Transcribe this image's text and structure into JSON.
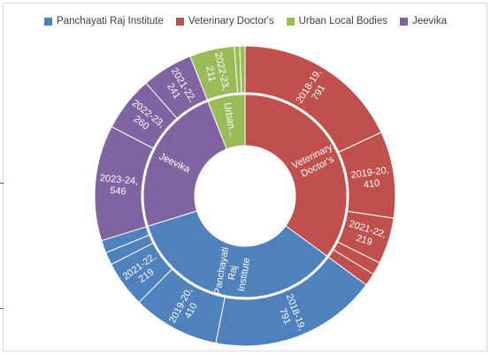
{
  "chart_data": {
    "type": "sunburst",
    "title": "",
    "legend_position": "top",
    "grid": false,
    "categories": [
      {
        "name": "Veterinary Doctor's",
        "label": "Veterinary Doctor's",
        "color": "#c0504d",
        "children": [
          {
            "name": "2018-19",
            "value": 791,
            "label": "2018-19, 791"
          },
          {
            "name": "2019-20",
            "value": 410,
            "label": "2019-20, 410"
          },
          {
            "name": "2021-22",
            "value": 219,
            "label": "2021-22, 219"
          },
          {
            "name": "",
            "value": 60,
            "label": ""
          },
          {
            "name": "",
            "value": 60,
            "label": ""
          }
        ]
      },
      {
        "name": "Panchayati Raj Institute",
        "label": "Panchayati Raj Institute",
        "color": "#4f81bd",
        "children": [
          {
            "name": "2018-19",
            "value": 791,
            "label": "2018-19, 791"
          },
          {
            "name": "2019-20",
            "value": 410,
            "label": "2019-20, 410"
          },
          {
            "name": "2021-22",
            "value": 219,
            "label": "2021-22, 219"
          },
          {
            "name": "",
            "value": 60,
            "label": ""
          },
          {
            "name": "",
            "value": 60,
            "label": ""
          }
        ]
      },
      {
        "name": "Jeevika",
        "label": "Jeevika",
        "color": "#8064a2",
        "children": [
          {
            "name": "2023-24",
            "value": 546,
            "label": "2023-24, 546"
          },
          {
            "name": "2022-23",
            "value": 260,
            "label": "2022-23, 260"
          },
          {
            "name": "2021-22",
            "value": 241,
            "label": "2021-22, 241"
          }
        ]
      },
      {
        "name": "Urban Local Bodies",
        "label": "Urban...",
        "color": "#9bbb59",
        "children": [
          {
            "name": "2022-23",
            "value": 211,
            "label": "2022-23, 211"
          },
          {
            "name": "",
            "value": 25,
            "label": ""
          },
          {
            "name": "",
            "value": 25,
            "label": ""
          }
        ]
      }
    ],
    "legend": [
      {
        "name": "Panchayati Raj Institute",
        "color": "#4f81bd"
      },
      {
        "name": "Veterinary Doctor's",
        "color": "#c0504d"
      },
      {
        "name": "Urban Local Bodies",
        "color": "#9bbb59"
      },
      {
        "name": "Jeevika",
        "color": "#8064a2"
      }
    ]
  }
}
